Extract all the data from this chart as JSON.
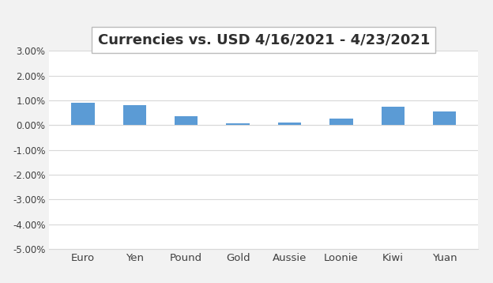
{
  "categories": [
    "Euro",
    "Yen",
    "Pound",
    "Gold",
    "Aussie",
    "Loonie",
    "Kiwi",
    "Yuan"
  ],
  "values": [
    0.0092,
    0.0082,
    0.0035,
    0.0007,
    0.001,
    0.0027,
    0.0075,
    0.0055
  ],
  "bar_color": "#5B9BD5",
  "title": "Currencies vs. USD 4/16/2021 - 4/23/2021",
  "ylim_min": -0.05,
  "ylim_max": 0.03,
  "yticks": [
    -0.05,
    -0.04,
    -0.03,
    -0.02,
    -0.01,
    0.0,
    0.01,
    0.02,
    0.03
  ],
  "ytick_labels": [
    "-5.00%",
    "-4.00%",
    "-3.00%",
    "-2.00%",
    "-1.00%",
    "0.00%",
    "1.00%",
    "2.00%",
    "3.00%"
  ],
  "background_color": "#F2F2F2",
  "plot_background": "#FFFFFF",
  "title_fontsize": 13,
  "grid_color": "#D8D8D8",
  "bar_width": 0.45
}
